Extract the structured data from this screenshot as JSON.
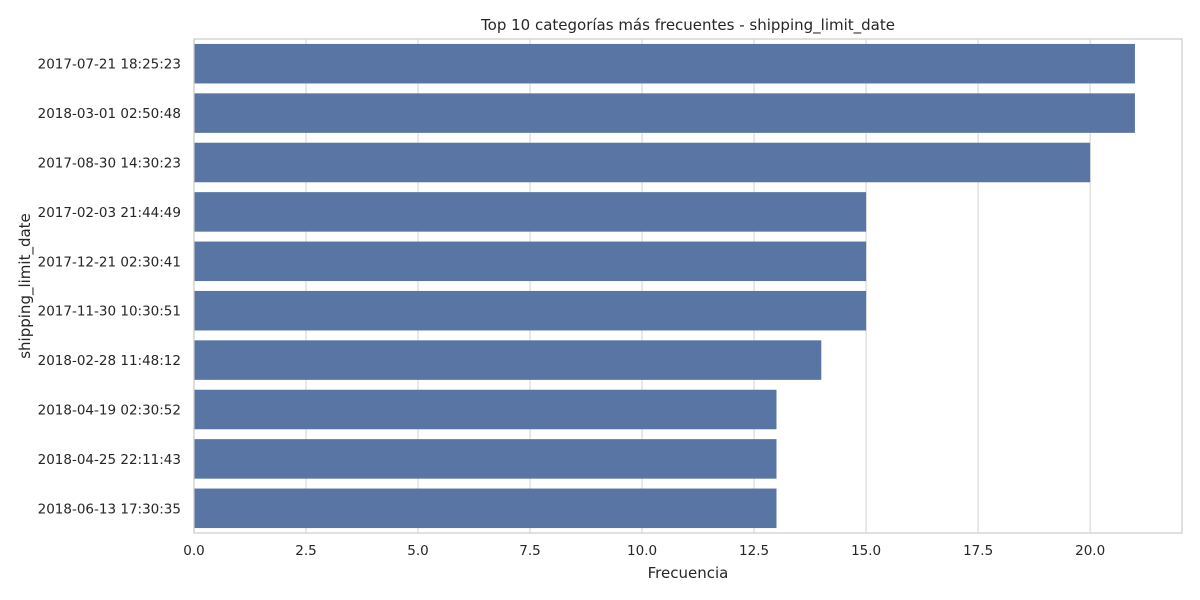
{
  "chart_data": {
    "type": "bar",
    "orientation": "horizontal",
    "title": "Top 10 categorías más frecuentes - shipping_limit_date",
    "xlabel": "Frecuencia",
    "ylabel": "shipping_limit_date",
    "categories": [
      "2017-07-21 18:25:23",
      "2018-03-01 02:50:48",
      "2017-08-30 14:30:23",
      "2017-02-03 21:44:49",
      "2017-12-21 02:30:41",
      "2017-11-30 10:30:51",
      "2018-02-28 11:48:12",
      "2018-04-19 02:30:52",
      "2018-04-25 22:11:43",
      "2018-06-13 17:30:35"
    ],
    "values": [
      21,
      21,
      20,
      15,
      15,
      15,
      14,
      13,
      13,
      13
    ],
    "xlim": [
      0,
      22.05
    ],
    "xticks": [
      0.0,
      2.5,
      5.0,
      7.5,
      10.0,
      12.5,
      15.0,
      17.5,
      20.0
    ],
    "xtick_labels": [
      "0.0",
      "2.5",
      "5.0",
      "7.5",
      "10.0",
      "12.5",
      "15.0",
      "17.5",
      "20.0"
    ],
    "grid": "x",
    "legend": "none",
    "colors": {
      "bar": "#5875a4",
      "grid": "#d9d9d9",
      "frame": "#cccccc",
      "text": "#262626"
    }
  }
}
